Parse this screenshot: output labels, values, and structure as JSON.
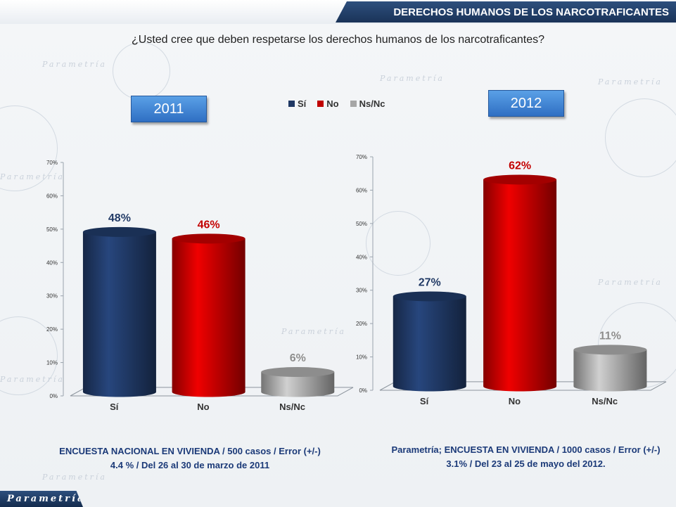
{
  "header": {
    "title": "DERECHOS HUMANOS DE LOS NARCOTRAFICANTES"
  },
  "question": "¿Usted cree que deben respetarse los derechos humanos de los narcotraficantes?",
  "legend": [
    {
      "label": "Sí",
      "color": "#1f3864"
    },
    {
      "label": "No",
      "color": "#c00000"
    },
    {
      "label": "Ns/Nc",
      "color": "#a6a6a6"
    }
  ],
  "watermark": "Parametría",
  "brand": "Parametría",
  "chart_data": [
    {
      "type": "bar",
      "year_label": "2011",
      "categories": [
        "Sí",
        "No",
        "Ns/Nc"
      ],
      "values": [
        48,
        46,
        6
      ],
      "value_labels": [
        "48%",
        "46%",
        "6%"
      ],
      "colors": [
        "#1f3864",
        "#c00000",
        "#a6a6a6"
      ],
      "label_colors": [
        "#1f3864",
        "#c00000",
        "#8c8c8c"
      ],
      "yticks": [
        "0%",
        "10%",
        "20%",
        "30%",
        "40%",
        "50%",
        "60%",
        "70%"
      ],
      "ylim": [
        0,
        70
      ],
      "footnote_lines": [
        "ENCUESTA NACIONAL EN VIVIENDA / 500 casos / Error (+/-)",
        "4.4 % / Del 26 al 30 de marzo de 2011"
      ]
    },
    {
      "type": "bar",
      "year_label": "2012",
      "categories": [
        "Sí",
        "No",
        "Ns/Nc"
      ],
      "values": [
        27,
        62,
        11
      ],
      "value_labels": [
        "27%",
        "62%",
        "11%"
      ],
      "colors": [
        "#1f3864",
        "#c00000",
        "#a6a6a6"
      ],
      "label_colors": [
        "#1f3864",
        "#c00000",
        "#8c8c8c"
      ],
      "yticks": [
        "0%",
        "10%",
        "20%",
        "30%",
        "40%",
        "50%",
        "60%",
        "70%"
      ],
      "ylim": [
        0,
        70
      ],
      "footnote_lines": [
        "Parametría; ENCUESTA EN VIVIENDA / 1000 casos / Error (+/-)",
        "3.1% / Del 23 al 25 de mayo del 2012."
      ]
    }
  ]
}
